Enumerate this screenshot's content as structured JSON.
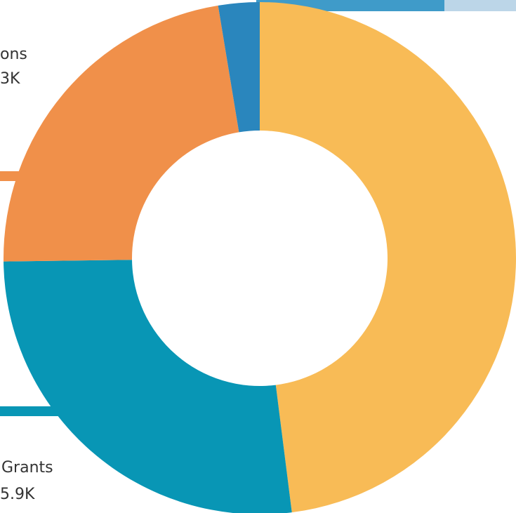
{
  "chart_data": {
    "type": "pie",
    "donut": true,
    "values": [
      48,
      26.8,
      22.6,
      2.6
    ],
    "colors": [
      "#f8bb56",
      "#0896b5",
      "#f0904a",
      "#2a86bd"
    ],
    "annotations": [
      {
        "text": "ons"
      },
      {
        "text": "3K"
      },
      {
        "text": "Grants"
      },
      {
        "text": "5.9K"
      }
    ]
  }
}
